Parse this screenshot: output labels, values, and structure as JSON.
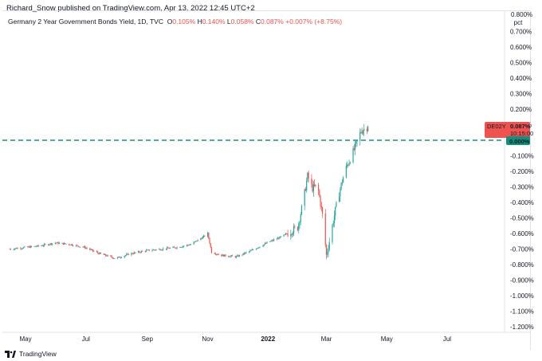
{
  "publisher": "Richard_Snow published on TradingView.com, Apr 13, 2022 12:45 UTC+2",
  "legend": {
    "title": "Germany 2 Year Government Bonds Yield, 1D, TVC",
    "open_label": "O",
    "open": "0.105%",
    "high_label": "H",
    "high": "0.140%",
    "low_label": "L",
    "low": "0.058%",
    "close_label": "C",
    "close": "0.087%",
    "change": "+0.007% (+8.75%)"
  },
  "price_tag": {
    "symbol": "DE02Y",
    "price": "0.087%",
    "countdown": "10:15:00",
    "zero_level": "0.000%"
  },
  "y_axis_unit": "pct",
  "footer": {
    "brand": "TradingView"
  },
  "colors": {
    "up": "#26a69a",
    "down": "#ef5350",
    "zero_line": "#138f7e",
    "axis_text": "#131722"
  },
  "chart_data": {
    "type": "candlestick",
    "title": "Germany 2 Year Government Bonds Yield, 1D, TVC",
    "x_tick_labels": [
      "May",
      "Jul",
      "Sep",
      "Nov",
      "2022",
      "Mar",
      "May",
      "Jul"
    ],
    "y_tick_labels": [
      "0.800%",
      "0.700%",
      "0.600%",
      "0.500%",
      "0.400%",
      "0.300%",
      "0.200%",
      "0.100%",
      "-0.100%",
      "-0.200%",
      "-0.300%",
      "-0.400%",
      "-0.500%",
      "-0.600%",
      "-0.700%",
      "-0.800%",
      "-0.900%",
      "-1.000%",
      "-1.100%",
      "-1.200%"
    ],
    "ylim": [
      -1.23,
      0.8
    ],
    "horizontal_line": 0.0,
    "grid": false,
    "series": [
      {
        "x": [
          "2021-04-15",
          "2021-04-30",
          "2021-05-15",
          "2021-05-31",
          "2021-06-15",
          "2021-06-30",
          "2021-07-15",
          "2021-07-31",
          "2021-08-15",
          "2021-08-31",
          "2021-09-15",
          "2021-09-30",
          "2021-10-15",
          "2021-10-28",
          "2021-11-01",
          "2021-11-05",
          "2021-11-15",
          "2021-11-30",
          "2021-12-15",
          "2021-12-31",
          "2022-01-15",
          "2022-01-31",
          "2022-02-05",
          "2022-02-10",
          "2022-02-15",
          "2022-02-20",
          "2022-02-25",
          "2022-03-01",
          "2022-03-05",
          "2022-03-10",
          "2022-03-15",
          "2022-03-20",
          "2022-03-25",
          "2022-03-31",
          "2022-04-05",
          "2022-04-12"
        ],
        "values": [
          -0.7,
          -0.69,
          -0.68,
          -0.66,
          -0.67,
          -0.69,
          -0.73,
          -0.76,
          -0.73,
          -0.71,
          -0.7,
          -0.69,
          -0.67,
          -0.62,
          -0.6,
          -0.72,
          -0.74,
          -0.75,
          -0.71,
          -0.66,
          -0.62,
          -0.56,
          -0.41,
          -0.23,
          -0.31,
          -0.29,
          -0.48,
          -0.74,
          -0.62,
          -0.45,
          -0.31,
          -0.19,
          -0.12,
          -0.03,
          0.06,
          0.087
        ]
      }
    ]
  }
}
